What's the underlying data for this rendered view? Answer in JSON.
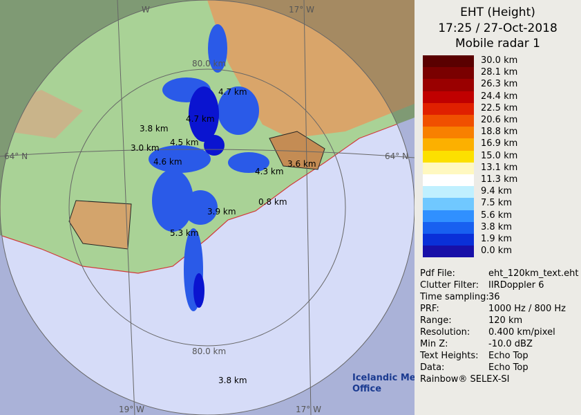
{
  "header": {
    "title": "EHT (Height)",
    "time": "17:25 / 27-Oct-2018",
    "radar": "Mobile radar 1"
  },
  "legend": {
    "labels": [
      "30.0 km",
      "28.1 km",
      "26.3 km",
      "24.4 km",
      "22.5 km",
      "20.6 km",
      "18.8 km",
      "16.9 km",
      "15.0 km",
      "13.1 km",
      "11.3 km",
      "9.4 km",
      "7.5 km",
      "5.6 km",
      "3.8 km",
      "1.9 km",
      "0.0 km"
    ]
  },
  "info": {
    "rows": [
      [
        "Pdf File:",
        "eht_120km_text.eht"
      ],
      [
        "Clutter Filter:",
        "IIRDoppler 6"
      ],
      [
        "Time sampling:",
        "36"
      ],
      [
        "PRF:",
        "1000 Hz / 800 Hz"
      ],
      [
        "Range:",
        "120 km"
      ],
      [
        "Resolution:",
        "0.400 km/pixel"
      ],
      [
        "Min Z:",
        "-10.0 dBZ"
      ],
      [
        "Text Heights:",
        "Echo Top"
      ],
      [
        "Data:",
        "Echo Top"
      ]
    ],
    "footer": "Rainbow® SELEX-SI"
  },
  "map": {
    "grid_labels": [
      "W",
      "17° W",
      "64° N",
      "64° N",
      "19° W",
      "17° W"
    ],
    "range_labels": [
      "80.0 km",
      "80.0 km"
    ],
    "heights": [
      "4.7 km",
      "4.7 km",
      "3.8 km",
      "4.5 km",
      "3.0 km",
      "4.6 km",
      "4.3 km",
      "3.6 km",
      "3.9 km",
      "0.8 km",
      "5.3 km",
      "3.8 km"
    ],
    "logo": [
      "Icelandic Met",
      "Office"
    ]
  }
}
